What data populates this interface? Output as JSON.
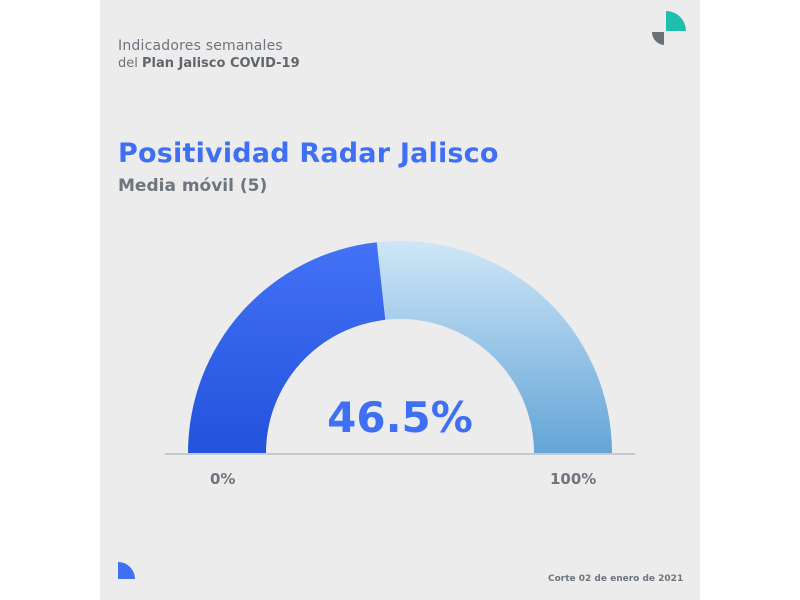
{
  "header": {
    "line1": "Indicadores semanales",
    "line2_prefix": "del ",
    "line2_bold": "Plan Jalisco COVID-19"
  },
  "title": "Positividad Radar Jalisco",
  "subtitle": "Media móvil (5)",
  "chart_data": {
    "type": "gauge",
    "value": 46.5,
    "value_label": "46.5%",
    "min": 0,
    "max": 100,
    "min_label": "0%",
    "max_label": "100%"
  },
  "footer": "Corte 02 de enero de 2021",
  "colors": {
    "filled_top": "#4372f7",
    "filled_bottom": "#2352dc",
    "remaining_top": "#cfe6f7",
    "remaining_bottom": "#63a5d6",
    "value_text": "#3f6ff5",
    "logo_teal": "#1fbfae",
    "logo_gray": "#69707a",
    "corner_blue": "#3f6ff5"
  }
}
